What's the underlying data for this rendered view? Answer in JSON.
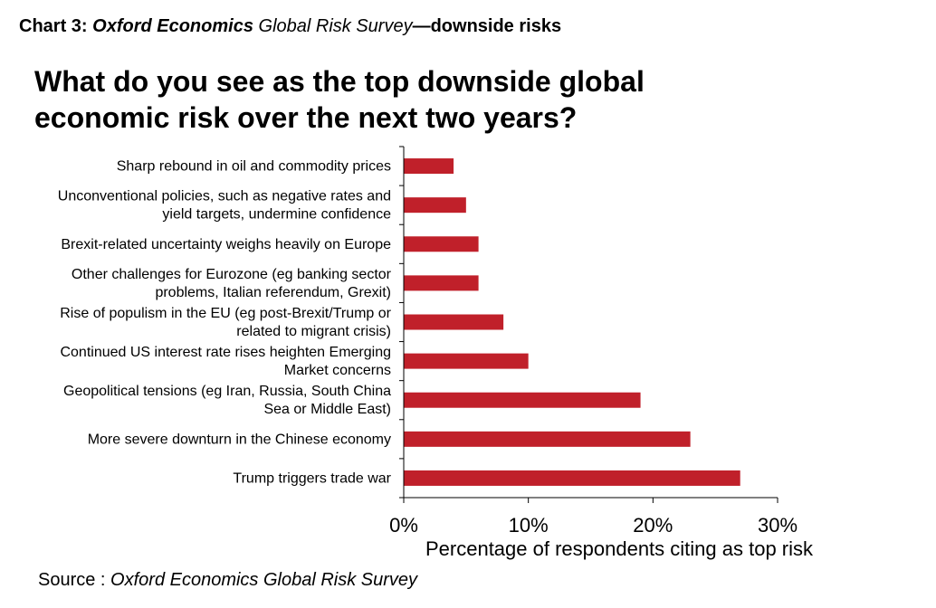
{
  "header": {
    "chart_number": "Chart 3:",
    "org": "Oxford Economics",
    "survey": "Global Risk Survey",
    "rest": "—downside risks"
  },
  "question": {
    "line1": "What do you see as the top downside global",
    "line2": "economic risk over the next two years?"
  },
  "source": {
    "prefix": "Source :",
    "name": "Oxford Economics Global Risk Survey"
  },
  "colors": {
    "bar": "#C0202A",
    "axis": "#000000"
  },
  "chart_data": {
    "type": "bar",
    "orientation": "horizontal",
    "title": "What do you see as the top downside global economic risk over the next two years?",
    "xlabel": "Percentage of respondents citing as top risk",
    "ylabel": "",
    "xlim": [
      0,
      30
    ],
    "xticks": [
      0,
      10,
      20,
      30
    ],
    "xtick_labels": [
      "0%",
      "10%",
      "20%",
      "30%"
    ],
    "grid": false,
    "categories": [
      [
        "Sharp rebound in oil and commodity prices"
      ],
      [
        "Unconventional policies, such as negative rates and",
        "yield targets, undermine confidence"
      ],
      [
        "Brexit-related uncertainty weighs heavily on Europe"
      ],
      [
        "Other challenges for Eurozone (eg banking sector",
        "problems, Italian referendum, Grexit)"
      ],
      [
        "Rise of populism in the EU (eg post-Brexit/Trump or",
        "related to migrant crisis)"
      ],
      [
        "Continued US interest rate rises heighten Emerging",
        "Market concerns"
      ],
      [
        "Geopolitical tensions  (eg Iran, Russia, South China",
        "Sea or Middle East)"
      ],
      [
        "More severe downturn in the Chinese economy"
      ],
      [
        "Trump triggers trade war"
      ]
    ],
    "values": [
      4,
      5,
      6,
      6,
      8,
      10,
      19,
      23,
      27
    ]
  }
}
